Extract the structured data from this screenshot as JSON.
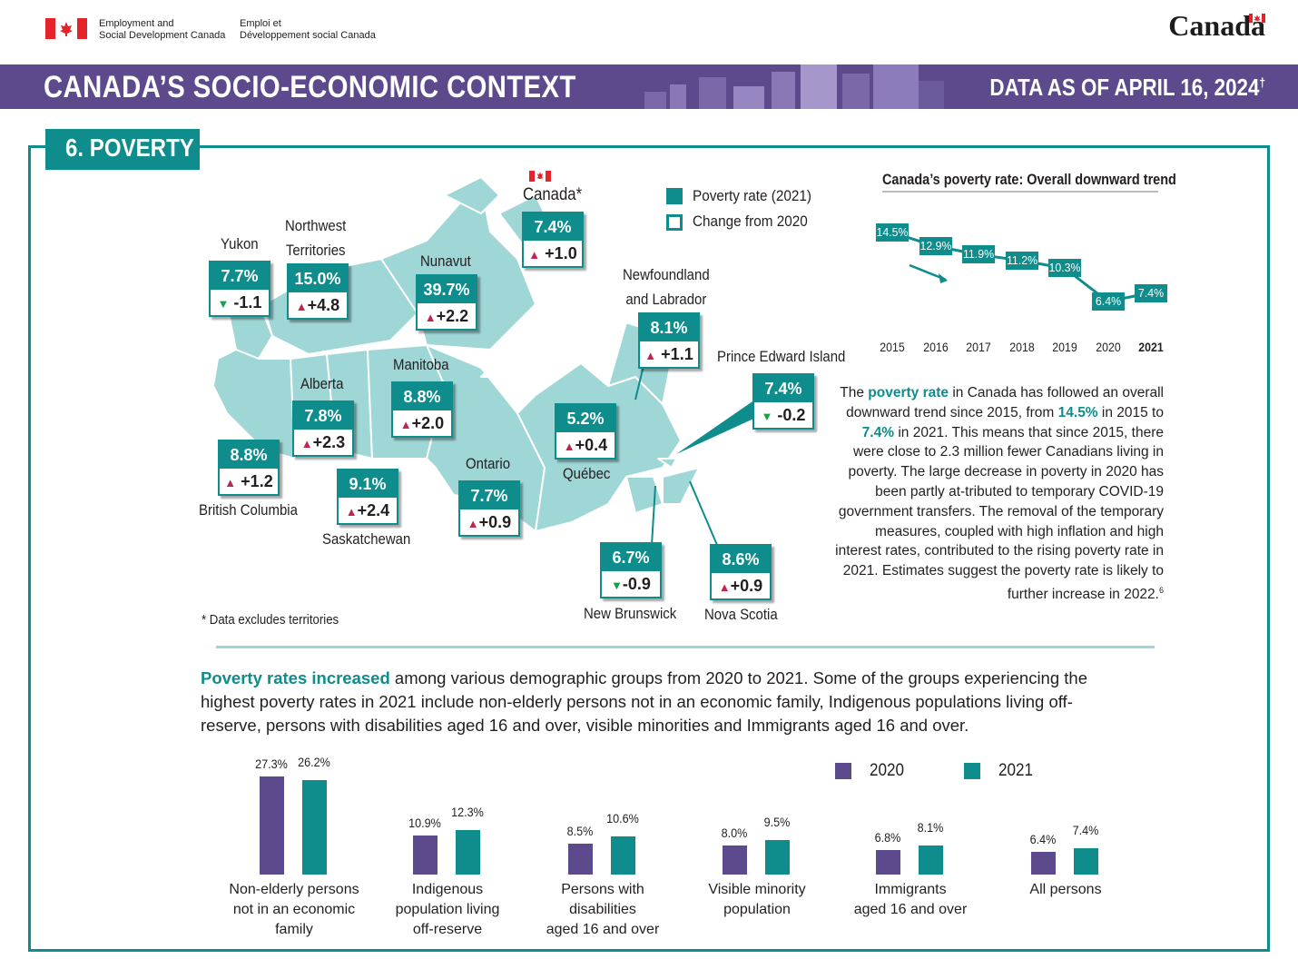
{
  "header": {
    "dept_en_1": "Employment and",
    "dept_en_2": "Social Development Canada",
    "dept_fr_1": "Emploi et",
    "dept_fr_2": "Développement social Canada",
    "wordmark": "Canada"
  },
  "banner": {
    "title": "CANADA’S SOCIO-ECONOMIC CONTEXT",
    "date": "DATA AS OF APRIL 16, 2024",
    "date_sup": "†"
  },
  "section": {
    "title": "6. POVERTY"
  },
  "colors": {
    "teal": "#0f8c8c",
    "purple": "#5c4a8c",
    "up": "#c0254f",
    "down": "#14a14a"
  },
  "legend": {
    "rate": "Poverty rate (2021)",
    "change": "Change from 2020"
  },
  "regions": [
    {
      "key": "canada",
      "name": "Canada*",
      "rate": "7.4%",
      "arrow": "up",
      "change": "+1.0"
    },
    {
      "key": "yukon",
      "name": "Yukon",
      "rate": "7.7%",
      "arrow": "down",
      "change": "-1.1"
    },
    {
      "key": "nwt",
      "name1": "Northwest",
      "name2": "Territories",
      "rate": "15.0%",
      "arrow": "up",
      "change": "+4.8"
    },
    {
      "key": "nunavut",
      "name": "Nunavut",
      "rate": "39.7%",
      "arrow": "up",
      "change": "+2.2"
    },
    {
      "key": "nl",
      "name1": "Newfoundland",
      "name2": "and Labrador",
      "rate": "8.1%",
      "arrow": "up",
      "change": "+1.1"
    },
    {
      "key": "pei",
      "name": "Prince Edward Island",
      "rate": "7.4%",
      "arrow": "down",
      "change": "-0.2"
    },
    {
      "key": "alberta",
      "name": "Alberta",
      "rate": "7.8%",
      "arrow": "up",
      "change": "+2.3"
    },
    {
      "key": "manitoba",
      "name": "Manitoba",
      "rate": "8.8%",
      "arrow": "up",
      "change": "+2.0"
    },
    {
      "key": "bc",
      "name": "British Columbia",
      "rate": "8.8%",
      "arrow": "up",
      "change": "+1.2"
    },
    {
      "key": "sask",
      "name": "Saskatchewan",
      "rate": "9.1%",
      "arrow": "up",
      "change": "+2.4"
    },
    {
      "key": "ontario",
      "name": "Ontario",
      "rate": "7.7%",
      "arrow": "up",
      "change": "+0.9"
    },
    {
      "key": "quebec",
      "name": "Québec",
      "rate": "5.2%",
      "arrow": "up",
      "change": "+0.4"
    },
    {
      "key": "nb",
      "name": "New Brunswick",
      "rate": "6.7%",
      "arrow": "down",
      "change": "-0.9"
    },
    {
      "key": "ns",
      "name": "Nova Scotia",
      "rate": "8.6%",
      "arrow": "up",
      "change": "+0.9"
    }
  ],
  "footnote": "* Data excludes territories",
  "trend": {
    "title": "Canada’s poverty rate: Overall downward trend",
    "paragraph": {
      "p1": "The ",
      "h1": "poverty rate",
      "p2": " in Canada has followed an overall downward trend since 2015, from ",
      "h2": "14.5%",
      "p3": " in 2015 to ",
      "h3": "7.4%",
      "p4": " in 2021. This means that since 2015, there were close to 2.3 million fewer Canadians living in poverty. The large decrease in poverty in 2020 has been partly at-tributed to temporary COVID-19 government transfers. The removal of the temporary measures, coupled with high inflation and high interest rates, contributed to the rising poverty rate in 2021. Estimates suggest the poverty rate is likely to further increase in 2022.",
      "sup": "6"
    }
  },
  "intro": {
    "highlight": "Poverty rates increased",
    "text": " among various demographic groups from 2020 to 2021. Some of the groups experiencing the highest poverty rates in 2021 include non-elderly persons not in an economic family, Indigenous populations living off-reserve, persons with disabilities aged 16 and over, visible minorities and Immigrants aged 16 and over."
  },
  "chart_data": [
    {
      "type": "line",
      "title": "Canada’s poverty rate: Overall downward trend",
      "x": [
        "2015",
        "2016",
        "2017",
        "2018",
        "2019",
        "2020",
        "2021"
      ],
      "values": [
        14.5,
        12.9,
        11.9,
        11.2,
        10.3,
        6.4,
        7.4
      ],
      "labels": [
        "14.5%",
        "12.9%",
        "11.9%",
        "11.2%",
        "10.3%",
        "6.4%",
        "7.4%"
      ],
      "ylim": [
        5,
        16
      ]
    },
    {
      "type": "bar",
      "title": "",
      "categories": [
        [
          "Non-elderly persons",
          "not in an economic",
          "family"
        ],
        [
          "Indigenous",
          "population living",
          "off-reserve"
        ],
        [
          "Persons with",
          "disabilities",
          "aged 16 and over"
        ],
        [
          "Visible minority",
          "population"
        ],
        [
          "Immigrants",
          "aged 16 and over"
        ],
        [
          "All persons"
        ]
      ],
      "series": [
        {
          "name": "2020",
          "color": "#5c4a8c",
          "values": [
            27.3,
            10.9,
            8.5,
            8.0,
            6.8,
            6.4
          ],
          "labels": [
            "27.3%",
            "10.9%",
            "8.5%",
            "8.0%",
            "6.8%",
            "6.4%"
          ]
        },
        {
          "name": "2021",
          "color": "#0f8c8c",
          "values": [
            26.2,
            12.3,
            10.6,
            9.5,
            8.1,
            7.4
          ],
          "labels": [
            "26.2%",
            "12.3%",
            "10.6%",
            "9.5%",
            "8.1%",
            "7.4%"
          ]
        }
      ],
      "ylim": [
        0,
        28
      ]
    }
  ]
}
